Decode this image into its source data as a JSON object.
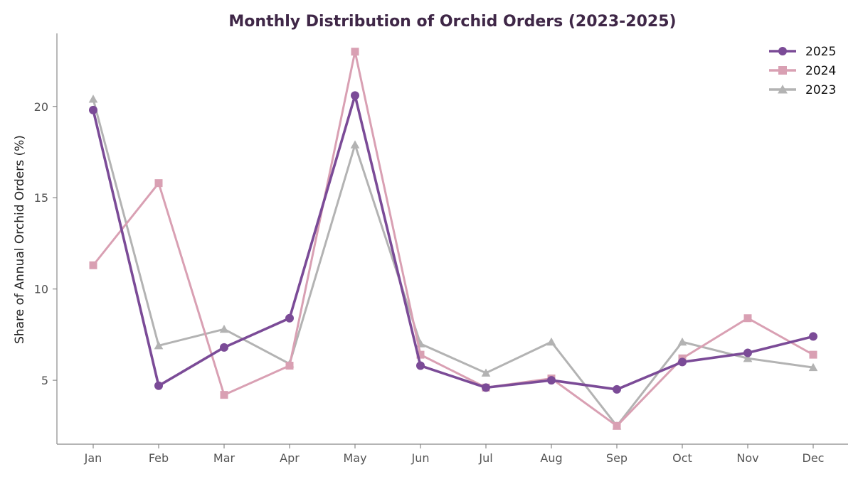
{
  "chart_data": {
    "type": "line",
    "title": "Monthly Distribution of Orchid Orders (2023-2025)",
    "xlabel": "",
    "ylabel": "Share of Annual Orchid Orders (%)",
    "categories": [
      "Jan",
      "Feb",
      "Mar",
      "Apr",
      "May",
      "Jun",
      "Jul",
      "Aug",
      "Sep",
      "Oct",
      "Nov",
      "Dec"
    ],
    "ylim": [
      1.5,
      24.0
    ],
    "yticks": [
      5,
      10,
      15,
      20
    ],
    "grid": false,
    "legend_position": "top-right",
    "series": [
      {
        "name": "2025",
        "color": "#7b4b97",
        "marker": "circle",
        "values": [
          19.8,
          4.7,
          6.8,
          8.4,
          20.6,
          5.8,
          4.6,
          5.0,
          4.5,
          6.0,
          6.5,
          7.4
        ]
      },
      {
        "name": "2024",
        "color": "#d9a0b3",
        "marker": "square",
        "values": [
          11.3,
          15.8,
          4.2,
          5.8,
          23.0,
          6.4,
          4.6,
          5.1,
          2.5,
          6.2,
          8.4,
          6.4
        ]
      },
      {
        "name": "2023",
        "color": "#b3b3b3",
        "marker": "triangle",
        "values": [
          20.4,
          6.9,
          7.8,
          5.9,
          17.9,
          7.0,
          5.4,
          7.1,
          2.5,
          7.1,
          6.2,
          5.7
        ]
      }
    ],
    "title_color": "#3f2747"
  }
}
